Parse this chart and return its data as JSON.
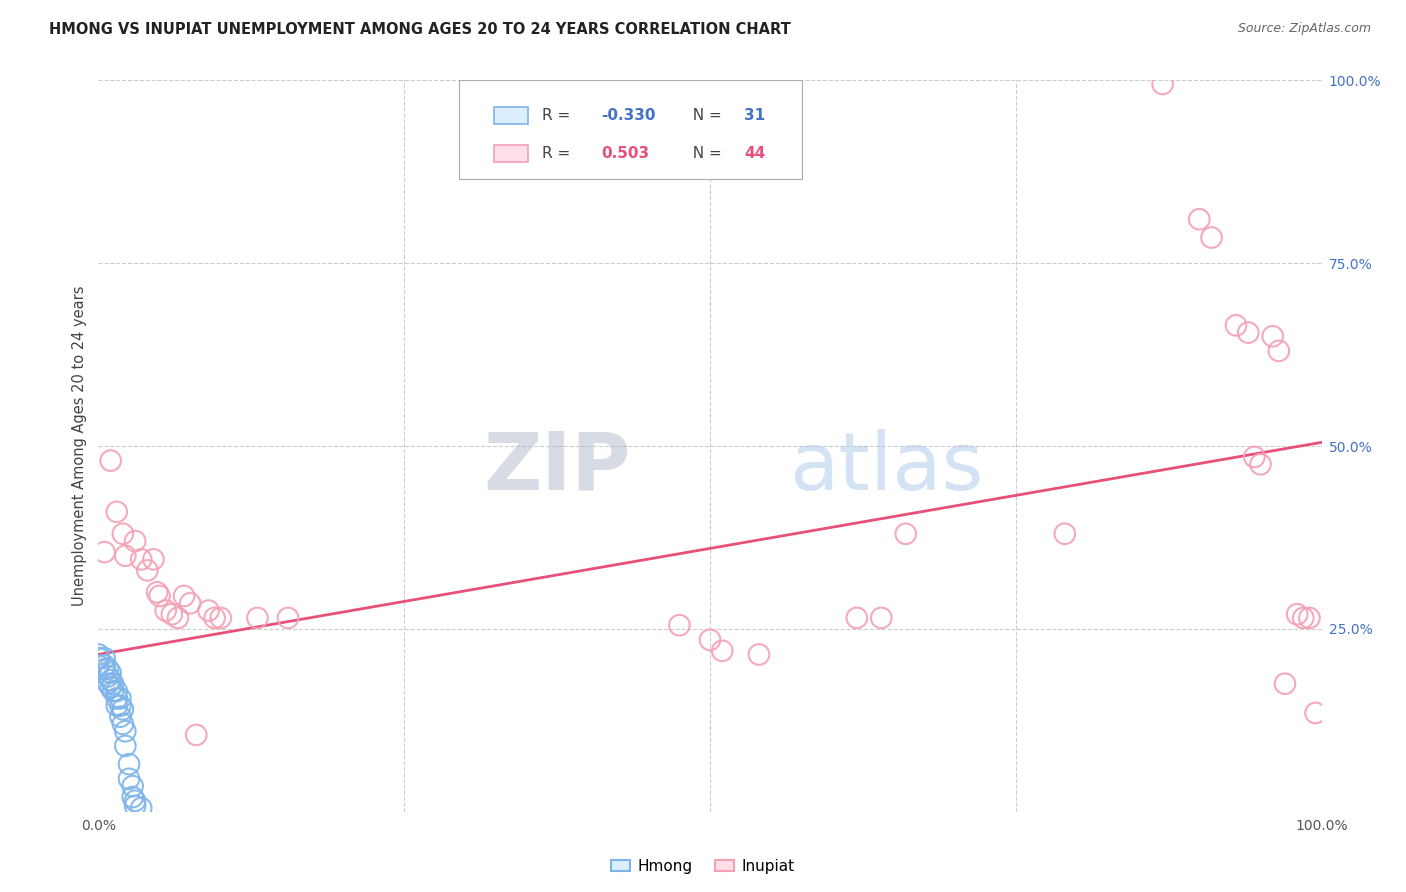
{
  "title": "HMONG VS INUPIAT UNEMPLOYMENT AMONG AGES 20 TO 24 YEARS CORRELATION CHART",
  "source": "Source: ZipAtlas.com",
  "ylabel": "Unemployment Among Ages 20 to 24 years",
  "xlim": [
    0,
    1
  ],
  "ylim": [
    0,
    1
  ],
  "hmong_R": -0.33,
  "hmong_N": 31,
  "inupiat_R": 0.503,
  "inupiat_N": 44,
  "hmong_color": "#7eb4ea",
  "inupiat_color": "#f4a0b5",
  "regression_color": "#e8507a",
  "regression_x0": 0.0,
  "regression_y0": 0.215,
  "regression_x1": 1.0,
  "regression_y1": 0.505,
  "hmong_scatter": [
    [
      0.0,
      0.215
    ],
    [
      0.0,
      0.21
    ],
    [
      0.0,
      0.2
    ],
    [
      0.005,
      0.21
    ],
    [
      0.005,
      0.2
    ],
    [
      0.005,
      0.195
    ],
    [
      0.008,
      0.195
    ],
    [
      0.008,
      0.185
    ],
    [
      0.008,
      0.175
    ],
    [
      0.01,
      0.19
    ],
    [
      0.01,
      0.18
    ],
    [
      0.01,
      0.17
    ],
    [
      0.012,
      0.175
    ],
    [
      0.012,
      0.165
    ],
    [
      0.015,
      0.165
    ],
    [
      0.015,
      0.155
    ],
    [
      0.015,
      0.145
    ],
    [
      0.018,
      0.155
    ],
    [
      0.018,
      0.145
    ],
    [
      0.018,
      0.13
    ],
    [
      0.02,
      0.14
    ],
    [
      0.02,
      0.12
    ],
    [
      0.022,
      0.11
    ],
    [
      0.022,
      0.09
    ],
    [
      0.025,
      0.065
    ],
    [
      0.025,
      0.045
    ],
    [
      0.028,
      0.035
    ],
    [
      0.028,
      0.02
    ],
    [
      0.03,
      0.015
    ],
    [
      0.03,
      0.008
    ],
    [
      0.035,
      0.005
    ]
  ],
  "inupiat_scatter": [
    [
      0.005,
      0.355
    ],
    [
      0.01,
      0.48
    ],
    [
      0.015,
      0.41
    ],
    [
      0.02,
      0.38
    ],
    [
      0.022,
      0.35
    ],
    [
      0.03,
      0.37
    ],
    [
      0.035,
      0.345
    ],
    [
      0.04,
      0.33
    ],
    [
      0.045,
      0.345
    ],
    [
      0.048,
      0.3
    ],
    [
      0.05,
      0.295
    ],
    [
      0.055,
      0.275
    ],
    [
      0.06,
      0.27
    ],
    [
      0.065,
      0.265
    ],
    [
      0.07,
      0.295
    ],
    [
      0.075,
      0.285
    ],
    [
      0.08,
      0.105
    ],
    [
      0.09,
      0.275
    ],
    [
      0.095,
      0.265
    ],
    [
      0.1,
      0.265
    ],
    [
      0.13,
      0.265
    ],
    [
      0.155,
      0.265
    ],
    [
      0.475,
      0.255
    ],
    [
      0.5,
      0.235
    ],
    [
      0.51,
      0.22
    ],
    [
      0.54,
      0.215
    ],
    [
      0.62,
      0.265
    ],
    [
      0.64,
      0.265
    ],
    [
      0.66,
      0.38
    ],
    [
      0.79,
      0.38
    ],
    [
      0.87,
      0.995
    ],
    [
      0.9,
      0.81
    ],
    [
      0.91,
      0.785
    ],
    [
      0.93,
      0.665
    ],
    [
      0.94,
      0.655
    ],
    [
      0.945,
      0.485
    ],
    [
      0.95,
      0.475
    ],
    [
      0.96,
      0.65
    ],
    [
      0.965,
      0.63
    ],
    [
      0.97,
      0.175
    ],
    [
      0.98,
      0.27
    ],
    [
      0.985,
      0.265
    ],
    [
      0.99,
      0.265
    ],
    [
      0.995,
      0.135
    ]
  ],
  "watermark_zip": "ZIP",
  "watermark_atlas": "atlas",
  "background_color": "#ffffff",
  "grid_color": "#cccccc"
}
